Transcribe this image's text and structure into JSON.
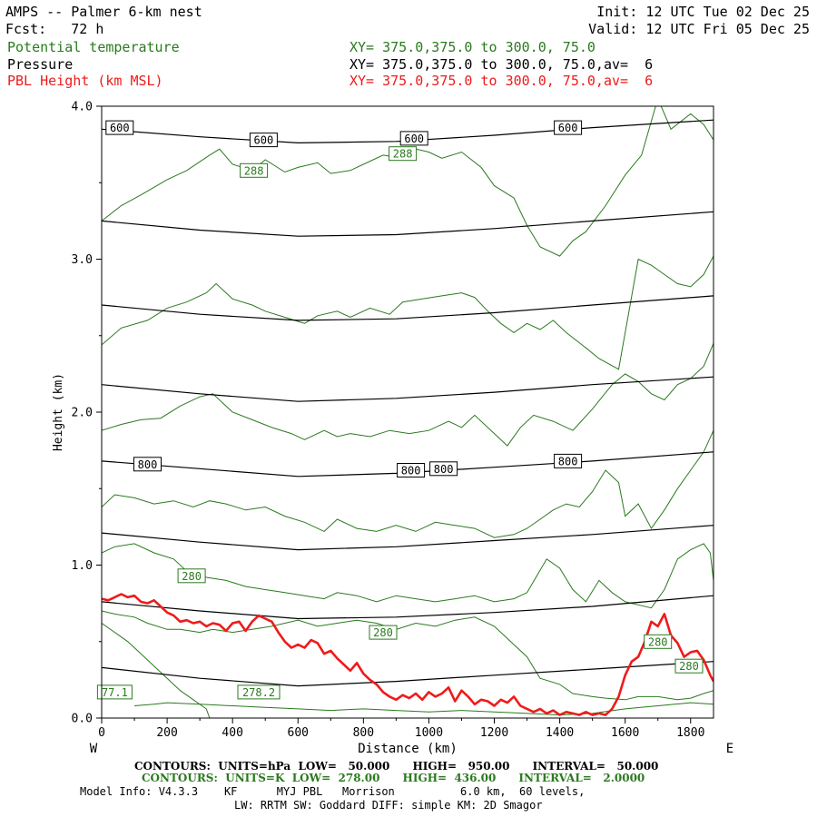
{
  "header": {
    "title_line": "AMPS -- Palmer 6-km nest",
    "fcst_line": "Fcst:   72 h",
    "init_line": "Init: 12 UTC Tue 02 Dec 25",
    "valid_line": "Valid: 12 UTC Fri 05 Dec 25",
    "fields": [
      {
        "name": "Potential temperature",
        "xy": "XY= 375.0,375.0 to 300.0, 75.0",
        "color": "#2a7a1e"
      },
      {
        "name": "Pressure",
        "xy": "XY= 375.0,375.0 to 300.0, 75.0,av=  6",
        "color": "#000000"
      },
      {
        "name": "PBL Height (km MSL)",
        "xy": "XY= 375.0,375.0 to 300.0, 75.0,av=  6",
        "color": "#ee1b1b"
      }
    ]
  },
  "footer": {
    "contours_pressure": "CONTOURS:  UNITS=hPa  LOW=   50.000      HIGH=   950.00      INTERVAL=   50.000",
    "contours_theta": "CONTOURS:  UNITS=K  LOW=  278.00      HIGH=  436.00      INTERVAL=   2.0000",
    "model_info": "Model Info: V4.3.3    KF      MYJ PBL   Morrison          6.0 km,  60 levels,",
    "model_info2": "LW: RRTM SW: Goddard DIFF: simple KM: 2D Smagor"
  },
  "chart_data": {
    "type": "line",
    "xlabel": "Distance (km)",
    "ylabel": "Height (km)",
    "x_start_label": "W",
    "x_end_label": "E",
    "xlim": [
      0,
      1870
    ],
    "ylim": [
      0,
      4.0
    ],
    "x_ticks": [
      0,
      200,
      400,
      600,
      800,
      1000,
      1200,
      1400,
      1600,
      1800
    ],
    "y_ticks": [
      0.0,
      1.0,
      2.0,
      3.0,
      4.0
    ],
    "pressure_color": "#000000",
    "theta_color": "#2a7a1e",
    "pbl_color": "#ee1b1b",
    "pressure_series": [
      {
        "x": [
          0,
          300,
          600,
          900,
          1200,
          1500,
          1870
        ],
        "y": [
          0.33,
          0.26,
          0.21,
          0.24,
          0.28,
          0.32,
          0.37
        ]
      },
      {
        "x": [
          0,
          300,
          600,
          900,
          1200,
          1500,
          1870
        ],
        "y": [
          0.76,
          0.7,
          0.65,
          0.66,
          0.69,
          0.73,
          0.8
        ]
      },
      {
        "x": [
          0,
          300,
          600,
          900,
          1200,
          1500,
          1870
        ],
        "y": [
          1.21,
          1.15,
          1.1,
          1.12,
          1.16,
          1.2,
          1.26
        ]
      },
      {
        "x": [
          0,
          300,
          600,
          900,
          1200,
          1500,
          1870
        ],
        "y": [
          1.68,
          1.63,
          1.58,
          1.6,
          1.64,
          1.68,
          1.74
        ]
      },
      {
        "x": [
          0,
          300,
          600,
          900,
          1200,
          1500,
          1870
        ],
        "y": [
          2.18,
          2.12,
          2.07,
          2.09,
          2.13,
          2.18,
          2.23
        ]
      },
      {
        "x": [
          0,
          300,
          600,
          900,
          1200,
          1500,
          1870
        ],
        "y": [
          2.7,
          2.64,
          2.6,
          2.61,
          2.65,
          2.7,
          2.76
        ]
      },
      {
        "x": [
          0,
          300,
          600,
          900,
          1200,
          1500,
          1870
        ],
        "y": [
          3.25,
          3.19,
          3.15,
          3.16,
          3.2,
          3.25,
          3.31
        ]
      },
      {
        "x": [
          0,
          300,
          600,
          900,
          1200,
          1500,
          1870
        ],
        "y": [
          3.85,
          3.8,
          3.76,
          3.77,
          3.81,
          3.86,
          3.91
        ]
      }
    ],
    "pressure_labels": [
      {
        "text": "600",
        "x": 55,
        "y": 3.86
      },
      {
        "text": "600",
        "x": 495,
        "y": 3.78
      },
      {
        "text": "600",
        "x": 955,
        "y": 3.79
      },
      {
        "text": "600",
        "x": 1425,
        "y": 3.86
      },
      {
        "text": "800",
        "x": 140,
        "y": 1.66
      },
      {
        "text": "800",
        "x": 945,
        "y": 1.62
      },
      {
        "text": "800",
        "x": 1045,
        "y": 1.63
      },
      {
        "text": "800",
        "x": 1425,
        "y": 1.68
      }
    ],
    "theta_series": [
      {
        "x": [
          0,
          60,
          120,
          200,
          260,
          330,
          360,
          400,
          460,
          500,
          560,
          600,
          660,
          700,
          760,
          800,
          860,
          920,
          960,
          1000,
          1040,
          1100,
          1160,
          1200,
          1260,
          1300,
          1340,
          1400,
          1440,
          1480,
          1540,
          1600,
          1650,
          1700,
          1740,
          1800,
          1840,
          1870
        ],
        "y": [
          3.25,
          3.35,
          3.42,
          3.52,
          3.58,
          3.68,
          3.72,
          3.62,
          3.58,
          3.65,
          3.57,
          3.6,
          3.63,
          3.56,
          3.58,
          3.62,
          3.68,
          3.66,
          3.72,
          3.7,
          3.66,
          3.7,
          3.6,
          3.48,
          3.4,
          3.22,
          3.08,
          3.02,
          3.12,
          3.18,
          3.35,
          3.55,
          3.68,
          4.05,
          3.85,
          3.95,
          3.88,
          3.78
        ]
      },
      {
        "x": [
          0,
          60,
          140,
          200,
          260,
          320,
          350,
          400,
          460,
          500,
          560,
          620,
          660,
          720,
          760,
          820,
          880,
          920,
          980,
          1040,
          1100,
          1140,
          1180,
          1220,
          1260,
          1300,
          1340,
          1380,
          1420,
          1480,
          1520,
          1580,
          1640,
          1680,
          1720,
          1760,
          1800,
          1840,
          1870
        ],
        "y": [
          2.44,
          2.55,
          2.6,
          2.68,
          2.72,
          2.78,
          2.84,
          2.74,
          2.7,
          2.66,
          2.62,
          2.58,
          2.63,
          2.66,
          2.62,
          2.68,
          2.64,
          2.72,
          2.74,
          2.76,
          2.78,
          2.75,
          2.66,
          2.58,
          2.52,
          2.58,
          2.54,
          2.6,
          2.52,
          2.42,
          2.35,
          2.28,
          3.0,
          2.96,
          2.9,
          2.84,
          2.82,
          2.9,
          3.02
        ]
      },
      {
        "x": [
          0,
          60,
          120,
          180,
          240,
          300,
          340,
          400,
          460,
          520,
          580,
          620,
          680,
          720,
          760,
          820,
          880,
          940,
          1000,
          1060,
          1100,
          1140,
          1200,
          1240,
          1280,
          1320,
          1380,
          1440,
          1500,
          1560,
          1600,
          1640,
          1680,
          1720,
          1760,
          1800,
          1840,
          1870
        ],
        "y": [
          1.88,
          1.92,
          1.95,
          1.96,
          2.04,
          2.1,
          2.12,
          2.0,
          1.95,
          1.9,
          1.86,
          1.82,
          1.88,
          1.84,
          1.86,
          1.84,
          1.88,
          1.86,
          1.88,
          1.94,
          1.9,
          1.98,
          1.86,
          1.78,
          1.9,
          1.98,
          1.94,
          1.88,
          2.02,
          2.18,
          2.25,
          2.2,
          2.12,
          2.08,
          2.18,
          2.22,
          2.3,
          2.45
        ]
      },
      {
        "x": [
          0,
          40,
          100,
          160,
          220,
          280,
          330,
          380,
          440,
          500,
          560,
          620,
          680,
          720,
          780,
          840,
          900,
          960,
          1020,
          1080,
          1140,
          1200,
          1260,
          1300,
          1340,
          1380,
          1420,
          1460,
          1500,
          1540,
          1580,
          1600,
          1640,
          1680,
          1720,
          1760,
          1800,
          1840,
          1870
        ],
        "y": [
          1.38,
          1.46,
          1.44,
          1.4,
          1.42,
          1.38,
          1.42,
          1.4,
          1.36,
          1.38,
          1.32,
          1.28,
          1.22,
          1.3,
          1.24,
          1.22,
          1.26,
          1.22,
          1.28,
          1.26,
          1.24,
          1.18,
          1.2,
          1.24,
          1.3,
          1.36,
          1.4,
          1.38,
          1.48,
          1.62,
          1.54,
          1.32,
          1.4,
          1.24,
          1.36,
          1.5,
          1.62,
          1.74,
          1.88
        ]
      },
      {
        "x": [
          0,
          40,
          100,
          160,
          220,
          260,
          320,
          380,
          440,
          500,
          560,
          620,
          680,
          720,
          780,
          840,
          900,
          960,
          1020,
          1080,
          1140,
          1200,
          1260,
          1300,
          1360,
          1400,
          1440,
          1480,
          1520,
          1560,
          1600,
          1640,
          1680,
          1720,
          1760,
          1800,
          1840,
          1860,
          1870
        ],
        "y": [
          1.08,
          1.12,
          1.14,
          1.08,
          1.04,
          0.96,
          0.92,
          0.9,
          0.86,
          0.84,
          0.82,
          0.8,
          0.78,
          0.82,
          0.8,
          0.76,
          0.8,
          0.78,
          0.76,
          0.78,
          0.8,
          0.76,
          0.78,
          0.82,
          1.04,
          0.98,
          0.84,
          0.76,
          0.9,
          0.82,
          0.76,
          0.74,
          0.72,
          0.84,
          1.04,
          1.1,
          1.14,
          1.08,
          0.9
        ]
      },
      {
        "x": [
          0,
          40,
          100,
          140,
          200,
          240,
          300,
          340,
          400,
          460,
          520,
          600,
          660,
          720,
          780,
          840,
          900,
          960,
          1020,
          1080,
          1140,
          1200,
          1240,
          1300,
          1340,
          1400,
          1440,
          1500,
          1540,
          1600,
          1640,
          1700,
          1760,
          1800,
          1840,
          1870
        ],
        "y": [
          0.7,
          0.68,
          0.66,
          0.62,
          0.58,
          0.58,
          0.56,
          0.58,
          0.56,
          0.58,
          0.6,
          0.64,
          0.6,
          0.62,
          0.64,
          0.62,
          0.58,
          0.62,
          0.6,
          0.64,
          0.66,
          0.6,
          0.52,
          0.4,
          0.26,
          0.22,
          0.16,
          0.14,
          0.13,
          0.12,
          0.14,
          0.14,
          0.12,
          0.13,
          0.16,
          0.18
        ]
      },
      {
        "x": [
          0,
          40,
          80,
          120,
          160,
          200,
          240,
          280,
          320,
          330
        ],
        "y": [
          0.62,
          0.56,
          0.5,
          0.42,
          0.34,
          0.26,
          0.18,
          0.12,
          0.06,
          0.0
        ]
      },
      {
        "x": [
          100,
          160,
          200,
          300,
          400,
          500,
          600,
          700,
          800,
          900,
          1000,
          1100,
          1200,
          1300,
          1400,
          1500,
          1600,
          1700,
          1800,
          1870
        ],
        "y": [
          0.08,
          0.09,
          0.1,
          0.09,
          0.08,
          0.07,
          0.06,
          0.05,
          0.06,
          0.05,
          0.04,
          0.05,
          0.04,
          0.03,
          0.02,
          0.03,
          0.06,
          0.08,
          0.1,
          0.09
        ]
      }
    ],
    "theta_labels": [
      {
        "text": "288",
        "x": 465,
        "y": 3.58
      },
      {
        "text": "288",
        "x": 920,
        "y": 3.69
      },
      {
        "text": "280",
        "x": 275,
        "y": 0.93
      },
      {
        "text": "280",
        "x": 860,
        "y": 0.56
      },
      {
        "text": "280",
        "x": 1700,
        "y": 0.5
      },
      {
        "text": "280",
        "x": 1795,
        "y": 0.34
      },
      {
        "text": "278.2",
        "x": 480,
        "y": 0.17
      },
      {
        "text": "77.1",
        "x": 40,
        "y": 0.17
      }
    ],
    "pbl_series": {
      "x": [
        0,
        20,
        40,
        60,
        80,
        100,
        120,
        140,
        160,
        180,
        200,
        220,
        240,
        260,
        280,
        300,
        320,
        340,
        360,
        380,
        400,
        420,
        440,
        460,
        480,
        500,
        520,
        540,
        560,
        580,
        600,
        620,
        640,
        660,
        680,
        700,
        720,
        740,
        760,
        780,
        800,
        820,
        840,
        860,
        880,
        900,
        920,
        940,
        960,
        980,
        1000,
        1020,
        1040,
        1060,
        1080,
        1100,
        1120,
        1140,
        1160,
        1180,
        1200,
        1220,
        1240,
        1260,
        1280,
        1300,
        1320,
        1340,
        1360,
        1380,
        1400,
        1420,
        1440,
        1460,
        1480,
        1500,
        1520,
        1540,
        1560,
        1580,
        1600,
        1620,
        1640,
        1660,
        1680,
        1700,
        1720,
        1740,
        1760,
        1780,
        1800,
        1820,
        1840,
        1860,
        1870
      ],
      "y": [
        0.78,
        0.77,
        0.79,
        0.81,
        0.79,
        0.8,
        0.76,
        0.75,
        0.77,
        0.73,
        0.69,
        0.67,
        0.63,
        0.64,
        0.62,
        0.63,
        0.6,
        0.62,
        0.61,
        0.57,
        0.62,
        0.63,
        0.57,
        0.63,
        0.67,
        0.65,
        0.63,
        0.56,
        0.5,
        0.46,
        0.48,
        0.46,
        0.51,
        0.49,
        0.42,
        0.44,
        0.39,
        0.35,
        0.31,
        0.36,
        0.29,
        0.25,
        0.22,
        0.17,
        0.14,
        0.12,
        0.15,
        0.13,
        0.16,
        0.12,
        0.17,
        0.14,
        0.16,
        0.2,
        0.11,
        0.18,
        0.14,
        0.09,
        0.12,
        0.11,
        0.08,
        0.12,
        0.1,
        0.14,
        0.08,
        0.06,
        0.04,
        0.06,
        0.03,
        0.05,
        0.02,
        0.04,
        0.03,
        0.02,
        0.04,
        0.02,
        0.03,
        0.02,
        0.06,
        0.14,
        0.28,
        0.37,
        0.4,
        0.5,
        0.63,
        0.6,
        0.68,
        0.54,
        0.49,
        0.4,
        0.43,
        0.44,
        0.38,
        0.28,
        0.24
      ]
    }
  }
}
